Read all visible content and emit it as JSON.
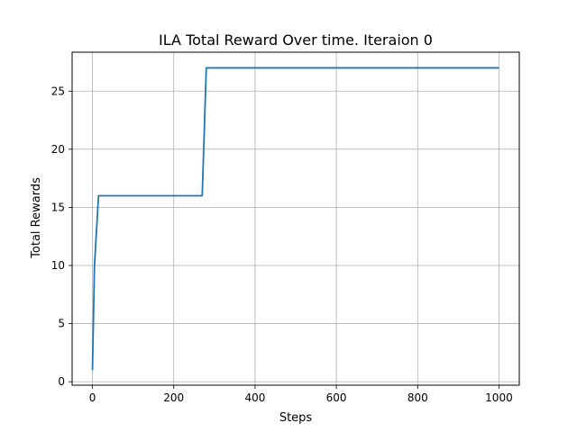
{
  "chart_data": {
    "type": "line",
    "title": "ILA Total Reward Over time. Iteraion 0",
    "xlabel": "Steps",
    "ylabel": "Total Rewards",
    "xlim": [
      -50,
      1050
    ],
    "ylim": [
      -0.3,
      28.35
    ],
    "xticks": [
      0,
      200,
      400,
      600,
      800,
      1000
    ],
    "yticks": [
      0,
      5,
      10,
      15,
      20,
      25
    ],
    "grid": true,
    "line_color": "#1f77b4",
    "series": [
      {
        "x": [
          0,
          5,
          15,
          270,
          280,
          1000
        ],
        "y": [
          1,
          10,
          16,
          16,
          27,
          27
        ]
      }
    ]
  }
}
